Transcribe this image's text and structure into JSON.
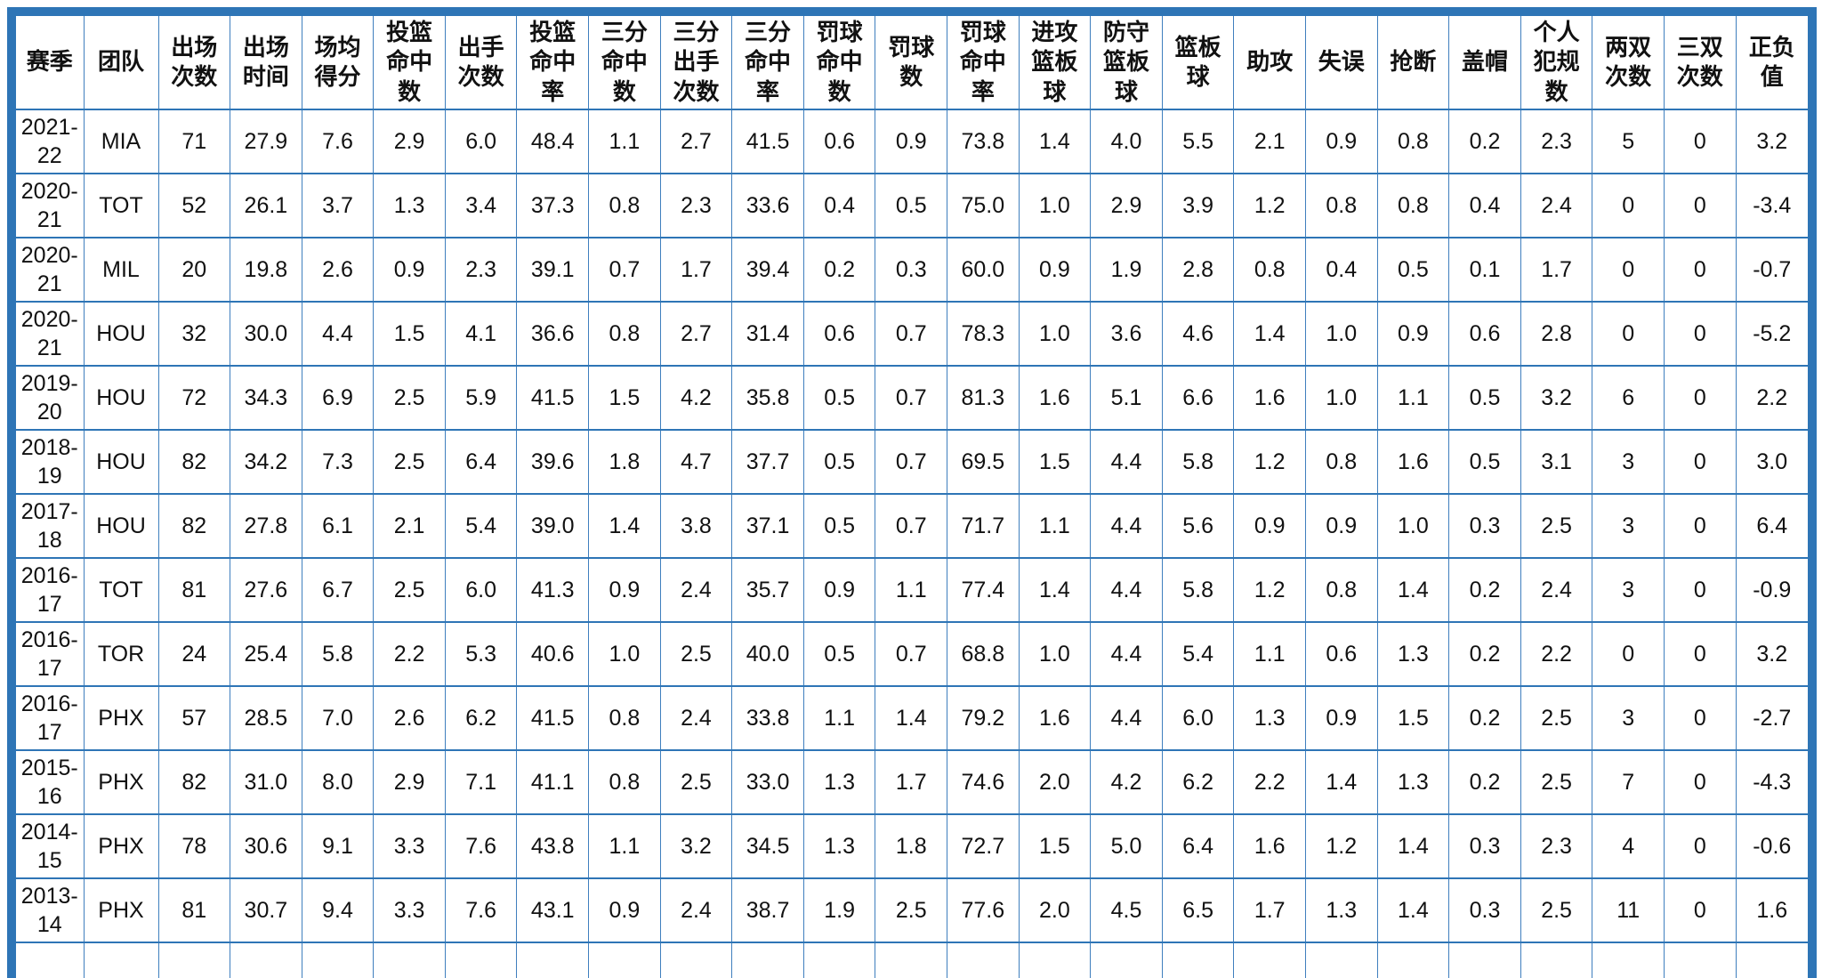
{
  "chart_data": {
    "type": "table",
    "title": "NBA player per-season statistics table (Chinese headers)",
    "columns": [
      "赛季",
      "团队",
      "出场次数",
      "出场时间",
      "场均得分",
      "投篮命中数",
      "出手次数",
      "投篮命中率",
      "三分命中数",
      "三分出手次数",
      "三分命中率",
      "罚球命中数",
      "罚球数",
      "罚球命中率",
      "进攻篮板球",
      "防守篮板球",
      "篮板球",
      "助攻",
      "失误",
      "抢断",
      "盖帽",
      "个人犯规数",
      "两双次数",
      "三双次数",
      "正负值"
    ],
    "rows": [
      [
        "2021-22",
        "MIA",
        "71",
        "27.9",
        "7.6",
        "2.9",
        "6.0",
        "48.4",
        "1.1",
        "2.7",
        "41.5",
        "0.6",
        "0.9",
        "73.8",
        "1.4",
        "4.0",
        "5.5",
        "2.1",
        "0.9",
        "0.8",
        "0.2",
        "2.3",
        "5",
        "0",
        "3.2"
      ],
      [
        "2020-21",
        "TOT",
        "52",
        "26.1",
        "3.7",
        "1.3",
        "3.4",
        "37.3",
        "0.8",
        "2.3",
        "33.6",
        "0.4",
        "0.5",
        "75.0",
        "1.0",
        "2.9",
        "3.9",
        "1.2",
        "0.8",
        "0.8",
        "0.4",
        "2.4",
        "0",
        "0",
        "-3.4"
      ],
      [
        "2020-21",
        "MIL",
        "20",
        "19.8",
        "2.6",
        "0.9",
        "2.3",
        "39.1",
        "0.7",
        "1.7",
        "39.4",
        "0.2",
        "0.3",
        "60.0",
        "0.9",
        "1.9",
        "2.8",
        "0.8",
        "0.4",
        "0.5",
        "0.1",
        "1.7",
        "0",
        "0",
        "-0.7"
      ],
      [
        "2020-21",
        "HOU",
        "32",
        "30.0",
        "4.4",
        "1.5",
        "4.1",
        "36.6",
        "0.8",
        "2.7",
        "31.4",
        "0.6",
        "0.7",
        "78.3",
        "1.0",
        "3.6",
        "4.6",
        "1.4",
        "1.0",
        "0.9",
        "0.6",
        "2.8",
        "0",
        "0",
        "-5.2"
      ],
      [
        "2019-20",
        "HOU",
        "72",
        "34.3",
        "6.9",
        "2.5",
        "5.9",
        "41.5",
        "1.5",
        "4.2",
        "35.8",
        "0.5",
        "0.7",
        "81.3",
        "1.6",
        "5.1",
        "6.6",
        "1.6",
        "1.0",
        "1.1",
        "0.5",
        "3.2",
        "6",
        "0",
        "2.2"
      ],
      [
        "2018-19",
        "HOU",
        "82",
        "34.2",
        "7.3",
        "2.5",
        "6.4",
        "39.6",
        "1.8",
        "4.7",
        "37.7",
        "0.5",
        "0.7",
        "69.5",
        "1.5",
        "4.4",
        "5.8",
        "1.2",
        "0.8",
        "1.6",
        "0.5",
        "3.1",
        "3",
        "0",
        "3.0"
      ],
      [
        "2017-18",
        "HOU",
        "82",
        "27.8",
        "6.1",
        "2.1",
        "5.4",
        "39.0",
        "1.4",
        "3.8",
        "37.1",
        "0.5",
        "0.7",
        "71.7",
        "1.1",
        "4.4",
        "5.6",
        "0.9",
        "0.9",
        "1.0",
        "0.3",
        "2.5",
        "3",
        "0",
        "6.4"
      ],
      [
        "2016-17",
        "TOT",
        "81",
        "27.6",
        "6.7",
        "2.5",
        "6.0",
        "41.3",
        "0.9",
        "2.4",
        "35.7",
        "0.9",
        "1.1",
        "77.4",
        "1.4",
        "4.4",
        "5.8",
        "1.2",
        "0.8",
        "1.4",
        "0.2",
        "2.4",
        "3",
        "0",
        "-0.9"
      ],
      [
        "2016-17",
        "TOR",
        "24",
        "25.4",
        "5.8",
        "2.2",
        "5.3",
        "40.6",
        "1.0",
        "2.5",
        "40.0",
        "0.5",
        "0.7",
        "68.8",
        "1.0",
        "4.4",
        "5.4",
        "1.1",
        "0.6",
        "1.3",
        "0.2",
        "2.2",
        "0",
        "0",
        "3.2"
      ],
      [
        "2016-17",
        "PHX",
        "57",
        "28.5",
        "7.0",
        "2.6",
        "6.2",
        "41.5",
        "0.8",
        "2.4",
        "33.8",
        "1.1",
        "1.4",
        "79.2",
        "1.6",
        "4.4",
        "6.0",
        "1.3",
        "0.9",
        "1.5",
        "0.2",
        "2.5",
        "3",
        "0",
        "-2.7"
      ],
      [
        "2015-16",
        "PHX",
        "82",
        "31.0",
        "8.0",
        "2.9",
        "7.1",
        "41.1",
        "0.8",
        "2.5",
        "33.0",
        "1.3",
        "1.7",
        "74.6",
        "2.0",
        "4.2",
        "6.2",
        "2.2",
        "1.4",
        "1.3",
        "0.2",
        "2.5",
        "7",
        "0",
        "-4.3"
      ],
      [
        "2014-15",
        "PHX",
        "78",
        "30.6",
        "9.1",
        "3.3",
        "7.6",
        "43.8",
        "1.1",
        "3.2",
        "34.5",
        "1.3",
        "1.8",
        "72.7",
        "1.5",
        "5.0",
        "6.4",
        "1.6",
        "1.2",
        "1.4",
        "0.3",
        "2.3",
        "4",
        "0",
        "-0.6"
      ],
      [
        "2013-14",
        "PHX",
        "81",
        "30.7",
        "9.4",
        "3.3",
        "7.6",
        "43.1",
        "0.9",
        "2.4",
        "38.7",
        "1.9",
        "2.5",
        "77.6",
        "2.0",
        "4.5",
        "6.5",
        "1.7",
        "1.3",
        "1.4",
        "0.3",
        "2.5",
        "11",
        "0",
        "1.6"
      ]
    ],
    "layout_hints": {
      "grid": true,
      "header_bold": true,
      "bottom_row_cut_off": true
    }
  },
  "colors": {
    "outer_border": "#2E75B6",
    "row_line": "#2E75B6",
    "column_line": "#3F7FBE",
    "text": "#111111",
    "background": "#FFFFFF"
  }
}
